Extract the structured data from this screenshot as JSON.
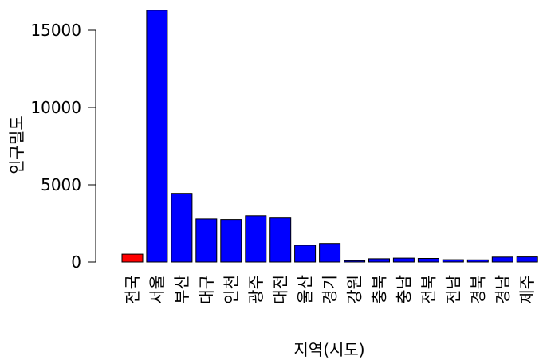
{
  "chart_data": {
    "type": "bar",
    "title": "",
    "xlabel": "지역(시도)",
    "ylabel": "인구밀도",
    "categories": [
      "전국",
      "서울",
      "부산",
      "대구",
      "인천",
      "광주",
      "대전",
      "울산",
      "경기",
      "강원",
      "충북",
      "충남",
      "전북",
      "전남",
      "경북",
      "경남",
      "제주"
    ],
    "values": [
      510,
      16300,
      4450,
      2790,
      2750,
      3000,
      2850,
      1080,
      1200,
      90,
      210,
      250,
      230,
      150,
      140,
      320,
      330
    ],
    "colors": [
      "#ff0000",
      "#0000ff",
      "#0000ff",
      "#0000ff",
      "#0000ff",
      "#0000ff",
      "#0000ff",
      "#0000ff",
      "#0000ff",
      "#0000ff",
      "#0000ff",
      "#0000ff",
      "#0000ff",
      "#0000ff",
      "#0000ff",
      "#0000ff",
      "#0000ff"
    ],
    "yticks": [
      0,
      5000,
      10000,
      15000
    ],
    "ytick_labels": [
      "0",
      "5000",
      "10000",
      "15000"
    ],
    "ylim": [
      0,
      16300
    ],
    "grid": false,
    "legend": "none"
  }
}
